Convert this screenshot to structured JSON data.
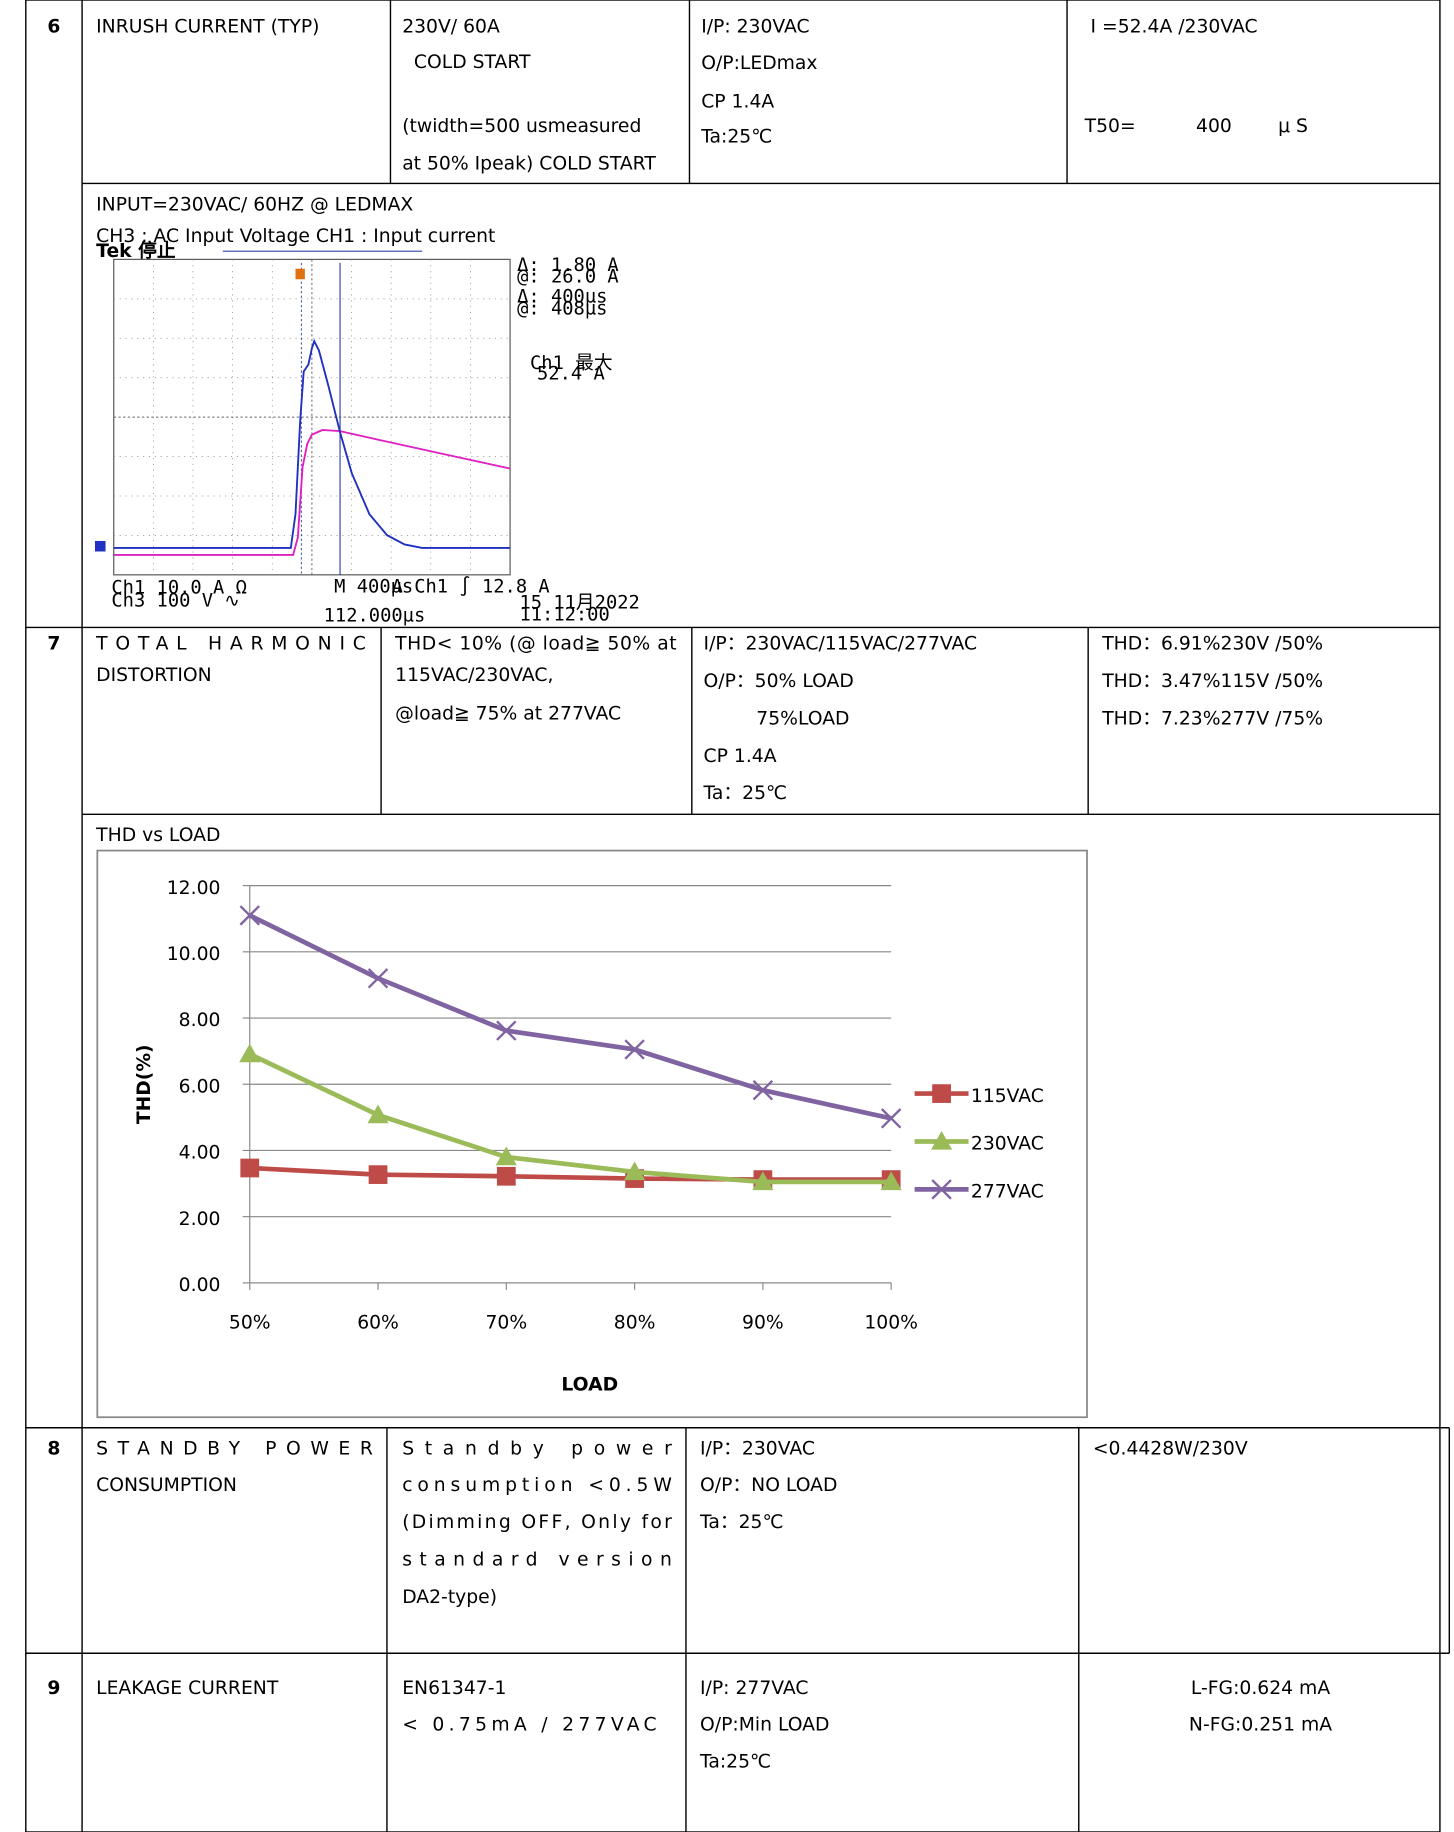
{
  "rows": [
    {
      "no": "6",
      "item": [
        "INRUSH CURRENT (TYP)"
      ],
      "spec": [
        "230V/ 60A",
        "COLD START",
        "(twidth=500 usmeasured",
        "at 50% Ipeak) COLD START"
      ],
      "condition": [
        "I/P: 230VAC",
        "O/P:LEDmax",
        "CP 1.4A",
        "Ta:25℃"
      ],
      "result": [
        "I =52.4A /230VAC",
        "T50=",
        "400",
        "μ S"
      ]
    },
    {
      "no": "7",
      "item": [
        "TOTAL HARMONIC",
        "DISTORTION"
      ],
      "spec": [
        "THD< 10% (@ load≧ 50% at",
        "115VAC/230VAC,",
        "@load≧ 75% at 277VAC"
      ],
      "condition": [
        "I/P：230VAC/115VAC/277VAC",
        "O/P：50% LOAD",
        "75%LOAD",
        "CP 1.4A",
        "Ta：25℃"
      ],
      "result": [
        "THD：6.91%230V /50%",
        "THD：3.47%115V /50%",
        "THD：7.23%277V /75%"
      ]
    },
    {
      "no": "8",
      "item": [
        "STANDBY POWER",
        "CONSUMPTION"
      ],
      "spec": [
        "Standby power",
        "consumption <0.5W",
        "(Dimming OFF, Only for",
        "standard version",
        "DA2-type)"
      ],
      "condition": [
        "I/P：230VAC",
        "O/P：NO LOAD",
        "Ta：25℃"
      ],
      "result": [
        "<0.4428W/230V"
      ]
    },
    {
      "no": "9",
      "item": [
        "LEAKAGE CURRENT"
      ],
      "spec": [
        "EN61347-1",
        "< 0.75mA / 277VAC"
      ],
      "condition": [
        "I/P: 277VAC",
        "O/P:Min LOAD",
        "Ta:25℃"
      ],
      "result": [
        "L-FG:0.624 mA",
        "N-FG:0.251 mA"
      ]
    }
  ],
  "scope": {
    "caption": [
      "INPUT=230VAC/ 60HZ @ LEDMAX",
      "CH3 : AC Input Voltage    CH1 : Input current"
    ],
    "status": "Tek 停止",
    "cursor": [
      "Δ:  1.80 A",
      "@:  26.0 A",
      "Δ:  400µs",
      "@:  408µs"
    ],
    "measure": [
      "Ch1 最大",
      "52.4 A"
    ],
    "channels": [
      "Ch1  10.0 A Ω",
      "Ch3  100 V ∿"
    ],
    "timebase": "M 400µs",
    "trigger": "A  Ch1  ∫  12.8 A",
    "offset": "112.000µs",
    "date": "15 11月2022",
    "time": "11:12:00"
  },
  "chart_caption": "THD vs LOAD",
  "chart_data": {
    "type": "line",
    "x_label": "LOAD",
    "y_label": "THD(%)",
    "categories": [
      "50%",
      "60%",
      "70%",
      "80%",
      "90%",
      "100%"
    ],
    "series": [
      {
        "name": "115VAC",
        "color": "#be4b48",
        "marker": "square",
        "values": [
          3.47,
          3.27,
          3.22,
          3.15,
          3.12,
          3.12
        ]
      },
      {
        "name": "230VAC",
        "color": "#9bbb59",
        "marker": "triangle",
        "values": [
          6.91,
          5.07,
          3.8,
          3.35,
          3.05,
          3.05
        ]
      },
      {
        "name": "277VAC",
        "color": "#8064a2",
        "marker": "x",
        "values": [
          11.1,
          9.2,
          7.62,
          7.05,
          5.82,
          4.97
        ]
      }
    ],
    "ylim": [
      0,
      12
    ],
    "yticks": [
      {
        "value": 0,
        "label": "0.00"
      },
      {
        "value": 2,
        "label": "2.00"
      },
      {
        "value": 4,
        "label": "4.00"
      },
      {
        "value": 6,
        "label": "6.00"
      },
      {
        "value": 8,
        "label": "8.00"
      },
      {
        "value": 10,
        "label": "10.00"
      },
      {
        "value": 12,
        "label": "12.00"
      }
    ],
    "grid": true,
    "legend": "right"
  }
}
